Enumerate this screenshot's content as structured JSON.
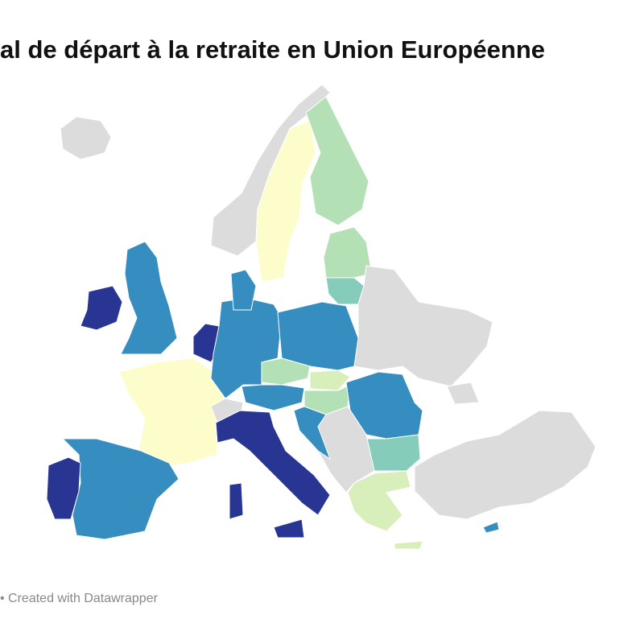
{
  "title": "al de départ à la retraite en Union Européenne",
  "footer": "• Created with Datawrapper"
}
